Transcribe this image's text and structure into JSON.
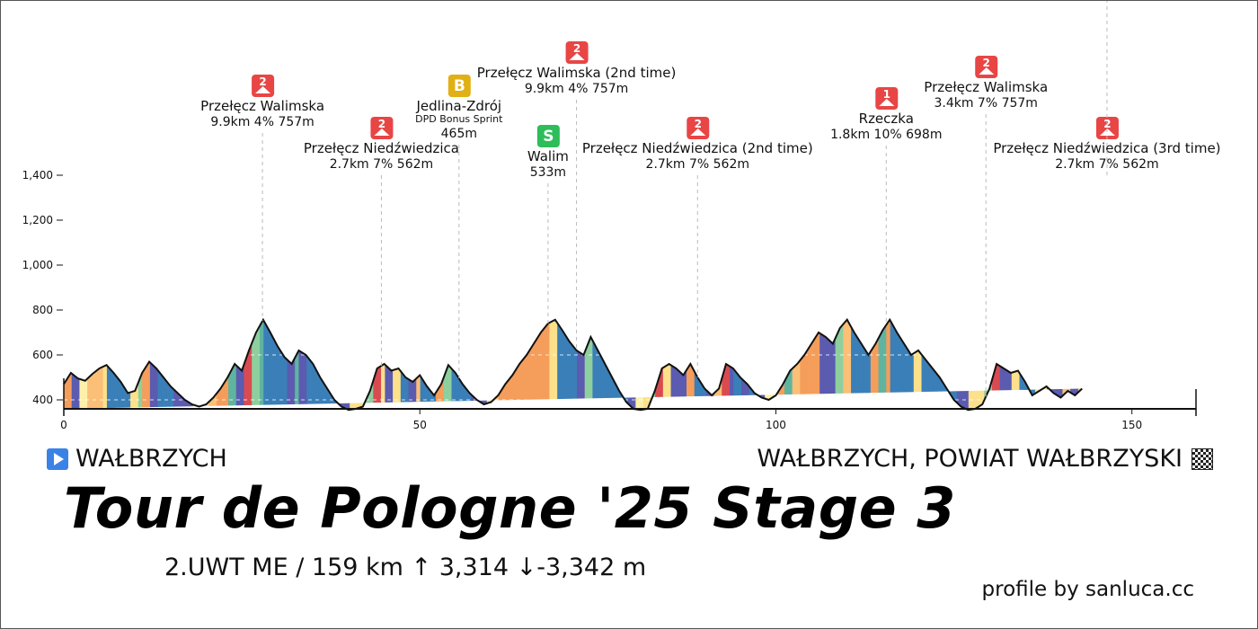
{
  "race": {
    "title": "Tour de Pologne '25 Stage 3",
    "stats": "2.UWT ME  /  159 km   ↑ 3,314  ↓-3,342 m",
    "start": "WAŁBRZYCH",
    "finish": "WAŁBRZYCH, POWIAT WAŁBRZYSKI",
    "credit": "profile by sanluca.cc"
  },
  "chart_data": {
    "type": "area",
    "xlabel": "",
    "ylabel": "",
    "xlim": [
      0,
      159
    ],
    "ylim": [
      350,
      1450
    ],
    "x_ticks": [
      0,
      50,
      100,
      150
    ],
    "y_ticks": [
      400,
      600,
      800,
      1000,
      1200,
      1400
    ],
    "y_tick_labels": [
      "400",
      "600",
      "800",
      "1,000",
      "1,200",
      "1,400"
    ],
    "grid": "horizontal dashed (white, inside profile)",
    "profile": {
      "x": [
        0,
        1,
        2,
        3,
        4,
        5,
        6,
        7,
        8,
        9,
        10,
        11,
        12,
        13,
        14,
        15,
        16,
        17,
        18,
        19,
        20,
        21,
        22,
        23,
        24,
        25,
        26,
        27,
        28,
        29,
        30,
        31,
        32,
        33,
        34,
        35,
        36,
        37,
        38,
        39,
        40,
        41,
        42,
        43,
        44,
        45,
        46,
        47,
        48,
        49,
        50,
        51,
        52,
        53,
        54,
        55,
        56,
        57,
        58,
        59,
        60,
        61,
        62,
        63,
        64,
        65,
        66,
        67,
        68,
        69,
        70,
        71,
        72,
        73,
        74,
        75,
        76,
        77,
        78,
        79,
        80,
        81,
        82,
        83,
        84,
        85,
        86,
        87,
        88,
        89,
        90,
        91,
        92,
        93,
        94,
        95,
        96,
        97,
        98,
        99,
        100,
        101,
        102,
        103,
        104,
        105,
        106,
        107,
        108,
        109,
        110,
        111,
        112,
        113,
        114,
        115,
        116,
        117,
        118,
        119,
        120,
        121,
        122,
        123,
        124,
        125,
        126,
        127,
        128,
        129,
        130,
        131,
        132,
        133,
        134,
        135,
        136,
        137,
        138,
        139,
        140,
        141,
        142,
        143,
        144,
        145,
        146,
        147,
        148,
        149,
        150,
        151,
        152,
        153,
        154,
        155,
        156,
        157,
        158,
        159
      ],
      "elevation": [
        470,
        520,
        495,
        485,
        515,
        540,
        555,
        520,
        480,
        430,
        440,
        520,
        570,
        540,
        500,
        460,
        430,
        400,
        380,
        370,
        380,
        410,
        450,
        500,
        560,
        530,
        620,
        700,
        757,
        700,
        640,
        590,
        560,
        620,
        600,
        560,
        500,
        450,
        400,
        370,
        355,
        360,
        370,
        440,
        540,
        560,
        530,
        540,
        500,
        480,
        510,
        460,
        420,
        470,
        555,
        520,
        470,
        430,
        400,
        380,
        390,
        420,
        470,
        510,
        560,
        600,
        650,
        700,
        740,
        757,
        710,
        660,
        620,
        600,
        680,
        620,
        560,
        500,
        440,
        390,
        360,
        355,
        360,
        440,
        540,
        560,
        540,
        510,
        560,
        500,
        450,
        420,
        450,
        560,
        540,
        500,
        470,
        430,
        410,
        400,
        420,
        470,
        530,
        560,
        600,
        650,
        700,
        680,
        650,
        720,
        757,
        700,
        650,
        600,
        650,
        710,
        757,
        700,
        650,
        600,
        620,
        580,
        540,
        500,
        450,
        400,
        370,
        355,
        360,
        380,
        450,
        560,
        540,
        520,
        530,
        480,
        420,
        440,
        460,
        430,
        410,
        440,
        420,
        450
      ],
      "gradient_colors": [
        "#fdf0a8",
        "#fde08a",
        "#fbbf77",
        "#f59d5a",
        "#5b5bb0",
        "#3a7fb8",
        "#5fb4a0",
        "#8ecf9e",
        "#d94b50",
        "#b2204a"
      ]
    },
    "climbs": [
      {
        "km": 27.9,
        "badge": "2",
        "name": "Przełęcz Walimska",
        "detail": "9.9km 4% 757m"
      },
      {
        "km": 44.6,
        "badge": "2",
        "name": "Przełęcz Niedźwiedzica",
        "detail": "2.7km 7% 562m"
      },
      {
        "km": 55.5,
        "badge": "B",
        "name": "Jedlina-Zdrój",
        "sub": "DPD Bonus Sprint",
        "detail": "465m"
      },
      {
        "km": 68.0,
        "badge": "S",
        "name": "Walim",
        "detail": "533m"
      },
      {
        "km": 72.0,
        "badge": "2",
        "name": "Przełęcz Walimska (2nd time)",
        "detail": "9.9km 4% 757m"
      },
      {
        "km": 89.0,
        "badge": "2",
        "name": "Przełęcz Niedźwiedzica (2nd time)",
        "detail": "2.7km 7% 562m"
      },
      {
        "km": 115.5,
        "badge": "1",
        "name": "Rzeczka",
        "detail": "1.8km 10% 698m"
      },
      {
        "km": 129.5,
        "badge": "2",
        "name": "Przełęcz Walimska",
        "detail": "3.4km 7% 757m"
      },
      {
        "km": 146.5,
        "badge": "2",
        "name": "Przełęcz Niedźwiedzica (3rd time)",
        "detail": "2.7km 7% 562m"
      }
    ],
    "badge_colors": {
      "2": "#e84545",
      "1": "#e84545",
      "B": "#e0b015",
      "S": "#2dbd5a"
    }
  }
}
